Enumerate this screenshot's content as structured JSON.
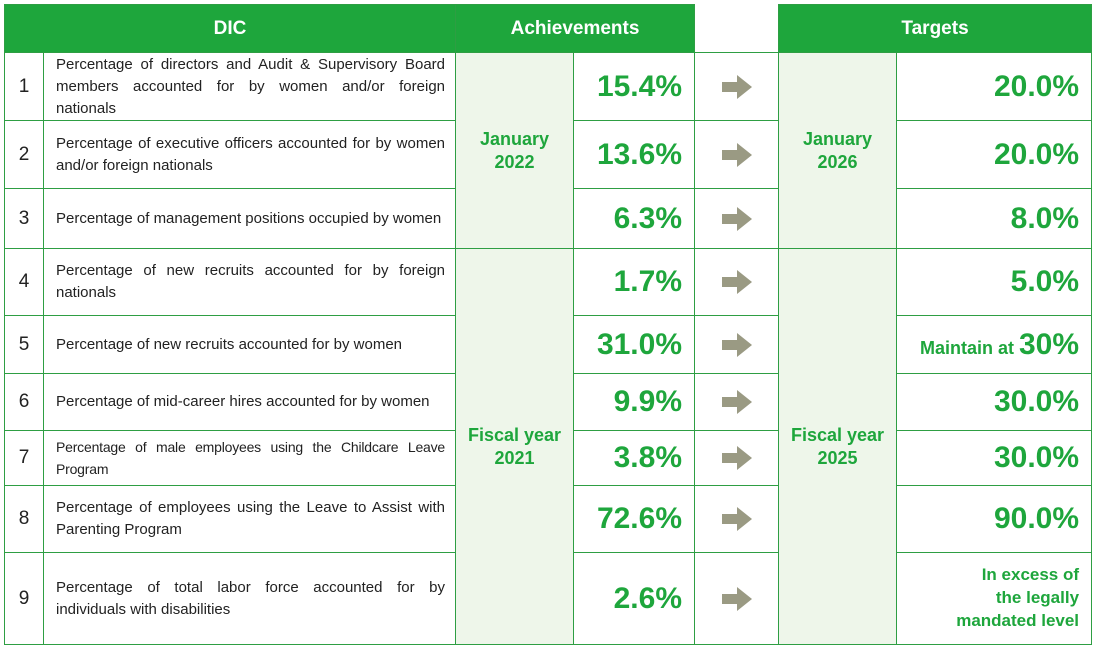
{
  "headers": {
    "company": "DIC",
    "achievements": "Achievements",
    "targets": "Targets"
  },
  "periods": {
    "ach_group1": [
      "January",
      "2022"
    ],
    "ach_group2": [
      "Fiscal year",
      "2021"
    ],
    "tgt_group1": [
      "January",
      "2026"
    ],
    "tgt_group2": [
      "Fiscal year",
      "2025"
    ]
  },
  "rows": [
    {
      "no": "1",
      "desc": "Percentage of directors and Audit & Supervisory Board members accounted for by women and/or foreign nationals",
      "achievement": "15.4%",
      "target": "20.0%"
    },
    {
      "no": "2",
      "desc": "Percentage of executive officers accounted for by women and/or foreign nationals",
      "achievement": "13.6%",
      "target": "20.0%"
    },
    {
      "no": "3",
      "desc": "Percentage of management positions occupied by women",
      "achievement": "6.3%",
      "target": "8.0%"
    },
    {
      "no": "4",
      "desc": "Percentage of new recruits accounted for by foreign nationals",
      "achievement": "1.7%",
      "target": "5.0%"
    },
    {
      "no": "5",
      "desc": "Percentage of new recruits accounted for by women",
      "achievement": "31.0%",
      "target_prefix": "Maintain at ",
      "target": "30%"
    },
    {
      "no": "6",
      "desc": "Percentage of mid-career hires accounted for by women",
      "achievement": "9.9%",
      "target": "30.0%"
    },
    {
      "no": "7",
      "desc": "Percentage of male employees using the Childcare Leave Program",
      "achievement": "3.8%",
      "target": "30.0%"
    },
    {
      "no": "8",
      "desc": "Percentage of employees using the Leave to Assist with Parenting Program",
      "achievement": "72.6%",
      "target": "90.0%"
    },
    {
      "no": "9",
      "desc": "Percentage of total labor force accounted for by individuals with disabilities",
      "achievement": "2.6%",
      "target_lines": [
        "In excess of",
        "the legally",
        "mandated level"
      ]
    }
  ],
  "icons": {
    "arrow": "arrow-right-icon"
  },
  "colors": {
    "accent": "#1ea63c",
    "period_bg": "#eef6ea",
    "arrow": "#9a9a83"
  }
}
